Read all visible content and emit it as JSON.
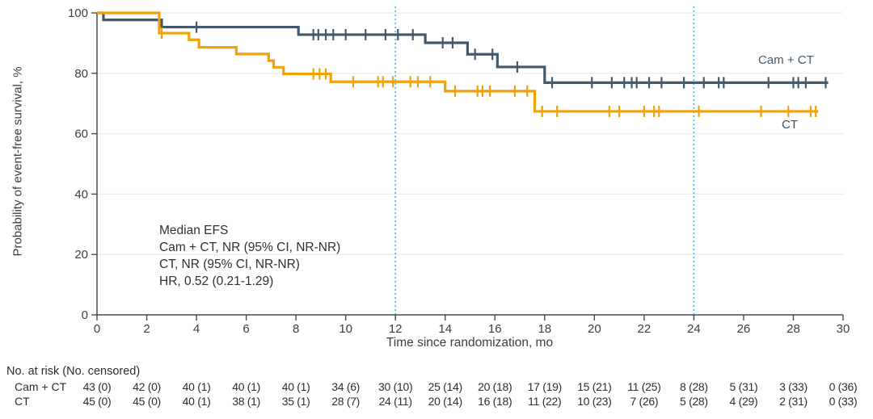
{
  "figure": {
    "y_axis_title": "Probability of event-free survival, %",
    "x_axis_title": "Time since randomization, mo",
    "annotation": {
      "line1": "Median EFS",
      "line2": "Cam + CT, NR (95% CI, NR-NR)",
      "line3": "CT, NR (95% CI, NR-NR)",
      "line4": "HR, 0.52 (0.21-1.29)"
    },
    "curve_labels": {
      "camct": "Cam + CT",
      "ct": "CT"
    }
  },
  "chart_data": {
    "type": "line",
    "subtype": "kaplan-meier-step",
    "title": "",
    "xlabel": "Time since randomization, mo",
    "ylabel": "Probability of event-free survival, %",
    "xlim": [
      0,
      30
    ],
    "ylim": [
      0,
      100
    ],
    "xticks": [
      0,
      2,
      4,
      6,
      8,
      10,
      12,
      14,
      16,
      18,
      20,
      22,
      24,
      26,
      28,
      30
    ],
    "yticks": [
      0,
      20,
      40,
      60,
      80,
      100
    ],
    "grid": "horizontal",
    "reference_lines_x": [
      12,
      24
    ],
    "reference_line_color": "#4fbee8",
    "axis_color": "#4b4b4b",
    "grid_color": "#ececec",
    "legend_position": "labels-on-plot",
    "series": [
      {
        "name": "Cam + CT",
        "color": "#44596b",
        "steps": [
          [
            0,
            100
          ],
          [
            0.26,
            97.7
          ],
          [
            2.6,
            95.3
          ],
          [
            8.1,
            92.8
          ],
          [
            13.2,
            90.1
          ],
          [
            14.9,
            86.3
          ],
          [
            16.1,
            82.1
          ],
          [
            18.0,
            76.9
          ]
        ],
        "end_x": 29.4,
        "censors": [
          [
            4.0,
            95.3
          ],
          [
            8.7,
            92.8
          ],
          [
            8.9,
            92.8
          ],
          [
            9.2,
            92.8
          ],
          [
            9.5,
            92.8
          ],
          [
            10.0,
            92.8
          ],
          [
            10.8,
            92.8
          ],
          [
            11.6,
            92.8
          ],
          [
            12.1,
            92.8
          ],
          [
            12.7,
            92.8
          ],
          [
            13.9,
            90.1
          ],
          [
            14.3,
            90.1
          ],
          [
            15.2,
            86.3
          ],
          [
            15.9,
            86.3
          ],
          [
            16.9,
            82.1
          ],
          [
            18.3,
            76.9
          ],
          [
            19.9,
            76.9
          ],
          [
            20.7,
            76.9
          ],
          [
            21.2,
            76.9
          ],
          [
            21.5,
            76.9
          ],
          [
            21.7,
            76.9
          ],
          [
            22.2,
            76.9
          ],
          [
            22.7,
            76.9
          ],
          [
            23.6,
            76.9
          ],
          [
            24.4,
            76.9
          ],
          [
            25.0,
            76.9
          ],
          [
            25.2,
            76.9
          ],
          [
            27.0,
            76.9
          ],
          [
            28.0,
            76.9
          ],
          [
            28.2,
            76.9
          ],
          [
            28.5,
            76.9
          ],
          [
            29.3,
            76.9
          ]
        ]
      },
      {
        "name": "CT",
        "color": "#f1a208",
        "steps": [
          [
            0,
            100
          ],
          [
            2.5,
            93.3
          ],
          [
            3.7,
            91.1
          ],
          [
            4.1,
            88.6
          ],
          [
            5.6,
            86.4
          ],
          [
            6.9,
            84.2
          ],
          [
            7.1,
            82.0
          ],
          [
            7.5,
            79.8
          ],
          [
            9.4,
            77.2
          ],
          [
            14.0,
            74.1
          ],
          [
            17.6,
            67.4
          ]
        ],
        "end_x": 29.0,
        "censors": [
          [
            2.6,
            93.3
          ],
          [
            8.7,
            79.8
          ],
          [
            8.95,
            79.8
          ],
          [
            9.2,
            79.8
          ],
          [
            10.3,
            77.2
          ],
          [
            11.3,
            77.2
          ],
          [
            11.5,
            77.2
          ],
          [
            11.9,
            77.2
          ],
          [
            12.6,
            77.2
          ],
          [
            12.9,
            77.2
          ],
          [
            13.4,
            77.2
          ],
          [
            14.4,
            74.1
          ],
          [
            15.3,
            74.1
          ],
          [
            15.5,
            74.1
          ],
          [
            15.8,
            74.1
          ],
          [
            16.8,
            74.1
          ],
          [
            17.3,
            74.1
          ],
          [
            17.9,
            67.4
          ],
          [
            18.5,
            67.4
          ],
          [
            20.6,
            67.4
          ],
          [
            21.0,
            67.4
          ],
          [
            22.0,
            67.4
          ],
          [
            22.4,
            67.4
          ],
          [
            22.6,
            67.4
          ],
          [
            24.2,
            67.4
          ],
          [
            26.7,
            67.4
          ],
          [
            27.8,
            67.4
          ],
          [
            28.7,
            67.4
          ],
          [
            28.9,
            67.4
          ]
        ]
      }
    ]
  },
  "risk_table": {
    "header": "No. at risk (No. censored)",
    "time_points": [
      0,
      2,
      4,
      6,
      8,
      10,
      12,
      14,
      16,
      18,
      20,
      22,
      24,
      26,
      28,
      30
    ],
    "rows": [
      {
        "label": "Cam + CT",
        "values": [
          "43 (0)",
          "42 (0)",
          "40 (1)",
          "40 (1)",
          "40 (1)",
          "34 (6)",
          "30 (10)",
          "25 (14)",
          "20 (18)",
          "17 (19)",
          "15 (21)",
          "11 (25)",
          "8 (28)",
          "5 (31)",
          "3 (33)",
          "0 (36)"
        ]
      },
      {
        "label": "CT",
        "values": [
          "45 (0)",
          "45 (0)",
          "40 (1)",
          "38 (1)",
          "35 (1)",
          "28 (7)",
          "24 (11)",
          "20 (14)",
          "16 (18)",
          "11 (22)",
          "10 (23)",
          "7 (26)",
          "5 (28)",
          "4 (29)",
          "2 (31)",
          "0 (33)"
        ]
      }
    ]
  }
}
